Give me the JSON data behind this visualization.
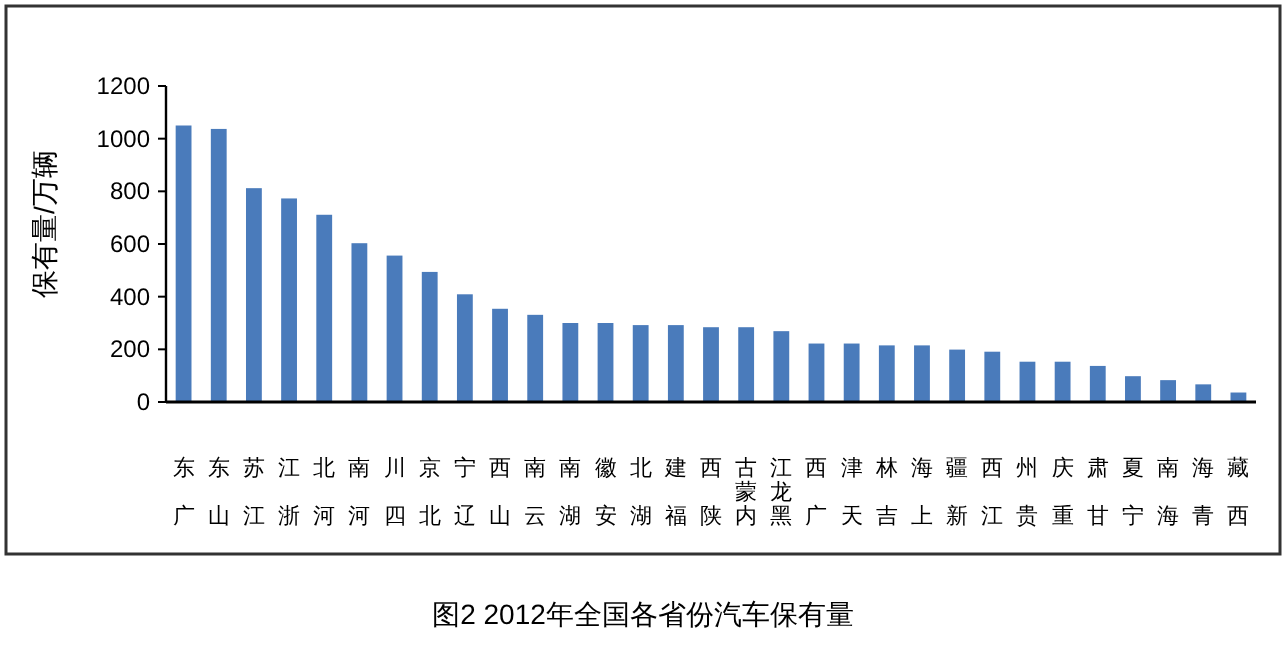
{
  "chart_data": {
    "type": "bar",
    "title": "图2  2012年全国各省份汽车保有量",
    "ylabel": "保有量/万辆",
    "categories": [
      "广东",
      "山东",
      "江苏",
      "浙江",
      "河北",
      "河南",
      "四川",
      "北京",
      "辽宁",
      "山西",
      "云南",
      "湖南",
      "安徽",
      "湖北",
      "福建",
      "陕西",
      "内蒙古",
      "黑龙江",
      "广西",
      "天津",
      "吉林",
      "上海",
      "新疆",
      "江西",
      "贵州",
      "重庆",
      "甘肃",
      "宁夏",
      "海南",
      "青海",
      "西藏"
    ],
    "values": [
      1050,
      1037,
      812,
      773,
      711,
      603,
      556,
      494,
      409,
      354,
      331,
      300,
      300,
      292,
      292,
      284,
      284,
      269,
      222,
      222,
      215,
      215,
      199,
      191,
      153,
      153,
      137,
      98,
      83,
      67,
      36
    ],
    "color": "#4a7bbb",
    "ylim": [
      0,
      1200
    ],
    "yticks": [
      0,
      200,
      400,
      600,
      800,
      1000,
      1200
    ],
    "grid": false
  }
}
